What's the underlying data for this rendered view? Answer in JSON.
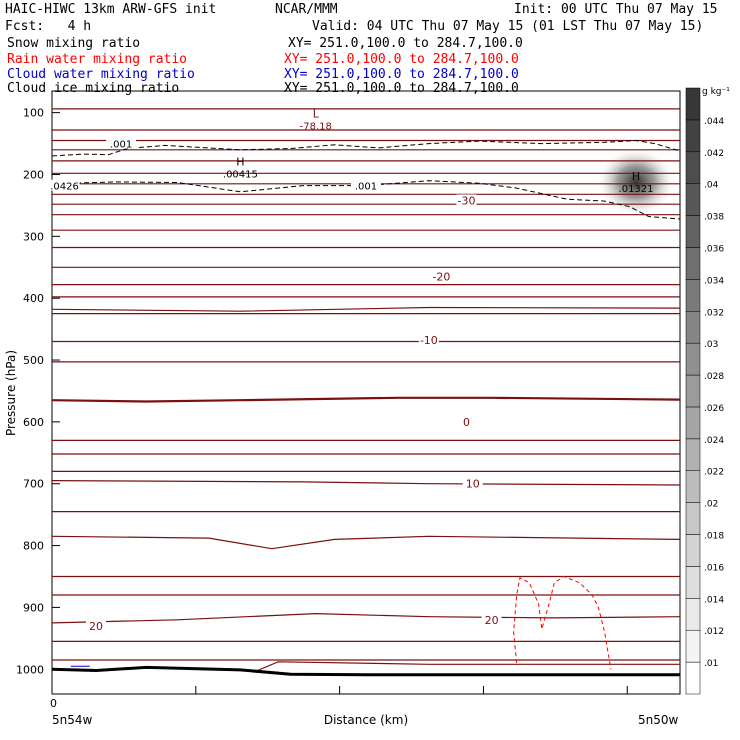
{
  "header": {
    "model": "HAIC-HIWC 13km ARW-GFS init",
    "org": "NCAR/MMM",
    "init": "Init: 00 UTC Thu 07 May 15",
    "fcst": "Fcst:   4 h",
    "valid": "Valid: 04 UTC Thu 07 May 15 (01 LST Thu 07 May 15)"
  },
  "legend": [
    {
      "label": "Snow mixing ratio",
      "xy": "XY= 251.0,100.0 to 284.7,100.0",
      "color": "#000000"
    },
    {
      "label": "Rain water mixing ratio",
      "xy": "XY= 251.0,100.0 to 284.7,100.0",
      "color": "#ff0000"
    },
    {
      "label": "Cloud water mixing ratio",
      "xy": "XY= 251.0,100.0 to 284.7,100.0",
      "color": "#0000cc"
    },
    {
      "label": "Cloud ice mixing ratio",
      "xy": "XY= 251.0,100.0 to 284.7,100.0",
      "color": "#000000"
    }
  ],
  "chart_data": {
    "type": "cross-section contour",
    "ylabel": "Pressure (hPa)",
    "xlabel": "Distance (km)",
    "x_left_label": "5n54w",
    "x_right_label": "5n50w",
    "x_zero_label": "0",
    "y_ticks": [
      100,
      200,
      300,
      400,
      500,
      600,
      700,
      800,
      900,
      1000
    ],
    "ylim": [
      1040,
      65
    ],
    "colorbar": {
      "unit": "g kg⁻¹",
      "ticks": [
        ".01",
        ".012",
        ".014",
        ".016",
        ".018",
        ".02",
        ".022",
        ".024",
        ".026",
        ".028",
        ".03",
        ".032",
        ".034",
        ".036",
        ".038",
        ".04",
        ".042",
        ".044"
      ]
    },
    "temperature_labels": [
      {
        "text": "-30",
        "x": 0.66,
        "p": 242
      },
      {
        "text": "-20",
        "x": 0.62,
        "p": 365
      },
      {
        "text": "-10",
        "x": 0.6,
        "p": 468
      },
      {
        "text": "0",
        "x": 0.66,
        "p": 600
      },
      {
        "text": "10",
        "x": 0.67,
        "p": 700
      },
      {
        "text": "20",
        "x": 0.07,
        "p": 930
      },
      {
        "text": "20",
        "x": 0.7,
        "p": 920
      }
    ],
    "extrema": [
      {
        "letter": "L",
        "value": "-78.18",
        "x": 0.42,
        "p": 113
      },
      {
        "letter": "H",
        "value": ".00415",
        "x": 0.3,
        "p": 190
      },
      {
        "letter": "H",
        "value": ".01321",
        "x": 0.93,
        "p": 214
      }
    ],
    "snow_contour_labels": [
      {
        "text": ".001",
        "x": 0.11,
        "p": 150
      },
      {
        "text": ".001",
        "x": 0.5,
        "p": 218
      },
      {
        "text": ".0426",
        "x": 0.02,
        "p": 218
      }
    ],
    "ice_max": {
      "value": 0.04,
      "x": 0.93,
      "p": 212
    }
  }
}
